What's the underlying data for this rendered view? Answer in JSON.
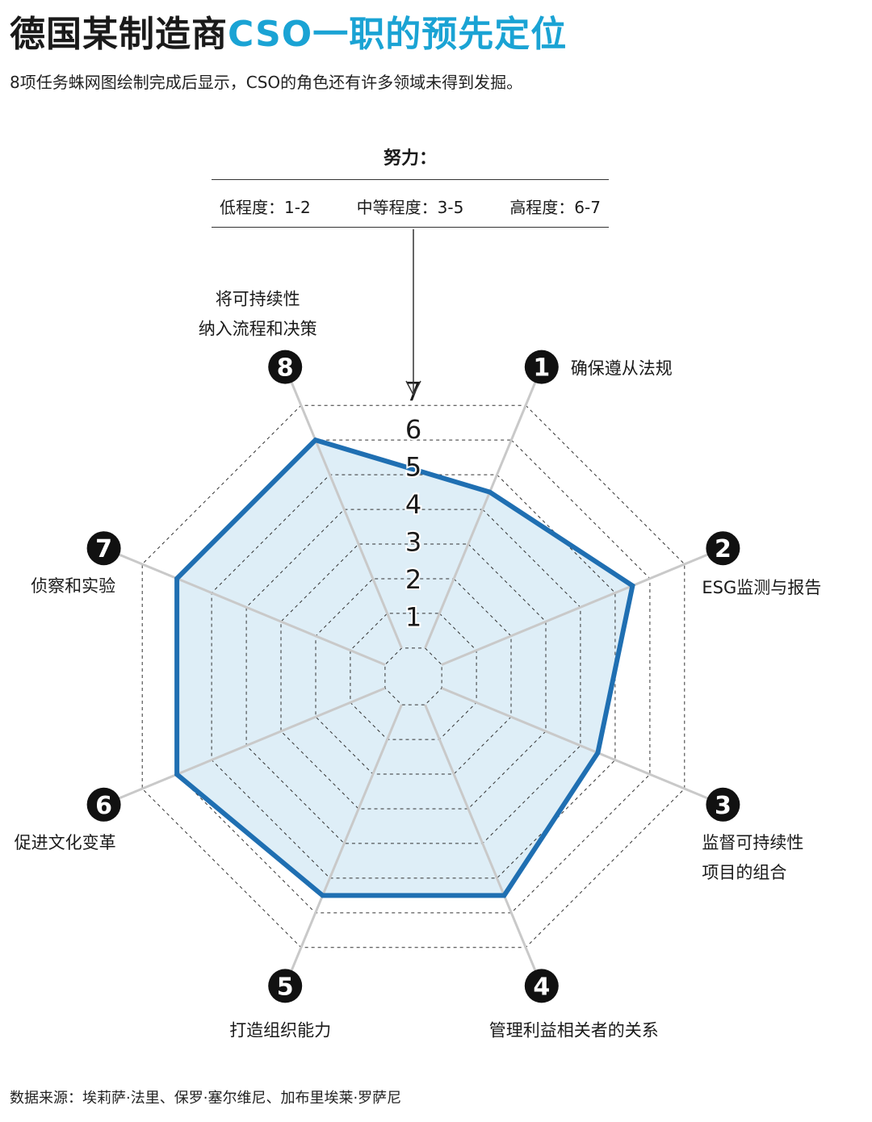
{
  "title": {
    "main": "德国某制造商",
    "accent": "CSO一职的预先定位"
  },
  "subtitle": "8项任务蛛网图绘制完成后显示，CSO的角色还有许多领域未得到发掘。",
  "legend": {
    "title": "努力：",
    "levels": [
      "低程度：1-2",
      "中等程度：3-5",
      "高程度：6-7"
    ]
  },
  "source": "数据来源：埃莉萨·法里、保罗·塞尔维尼、加布里埃莱·罗萨尼",
  "colors": {
    "accent": "#1aa3d4",
    "line": "#1f6fb2",
    "fill": "#deeef7"
  },
  "chart_data": {
    "type": "radar",
    "scale": [
      1,
      7
    ],
    "ticks": [
      "1",
      "2",
      "3",
      "4",
      "5",
      "6",
      "7"
    ],
    "axes": [
      {
        "num": "1",
        "label": [
          "确保遵从法规"
        ],
        "value": 4.5
      },
      {
        "num": "2",
        "label": [
          "ESG监测与报告"
        ],
        "value": 5.5
      },
      {
        "num": "3",
        "label": [
          "监督可持续性",
          "项目的组合"
        ],
        "value": 4.5
      },
      {
        "num": "4",
        "label": [
          "管理利益相关者的关系"
        ],
        "value": 5.5
      },
      {
        "num": "5",
        "label": [
          "打造组织能力"
        ],
        "value": 5.5
      },
      {
        "num": "6",
        "label": [
          "促进文化变革"
        ],
        "value": 6.0
      },
      {
        "num": "7",
        "label": [
          "侦察和实验"
        ],
        "value": 6.0
      },
      {
        "num": "8",
        "label": [
          "将可持续性",
          "纳入流程和决策"
        ],
        "value": 6.0
      }
    ]
  }
}
